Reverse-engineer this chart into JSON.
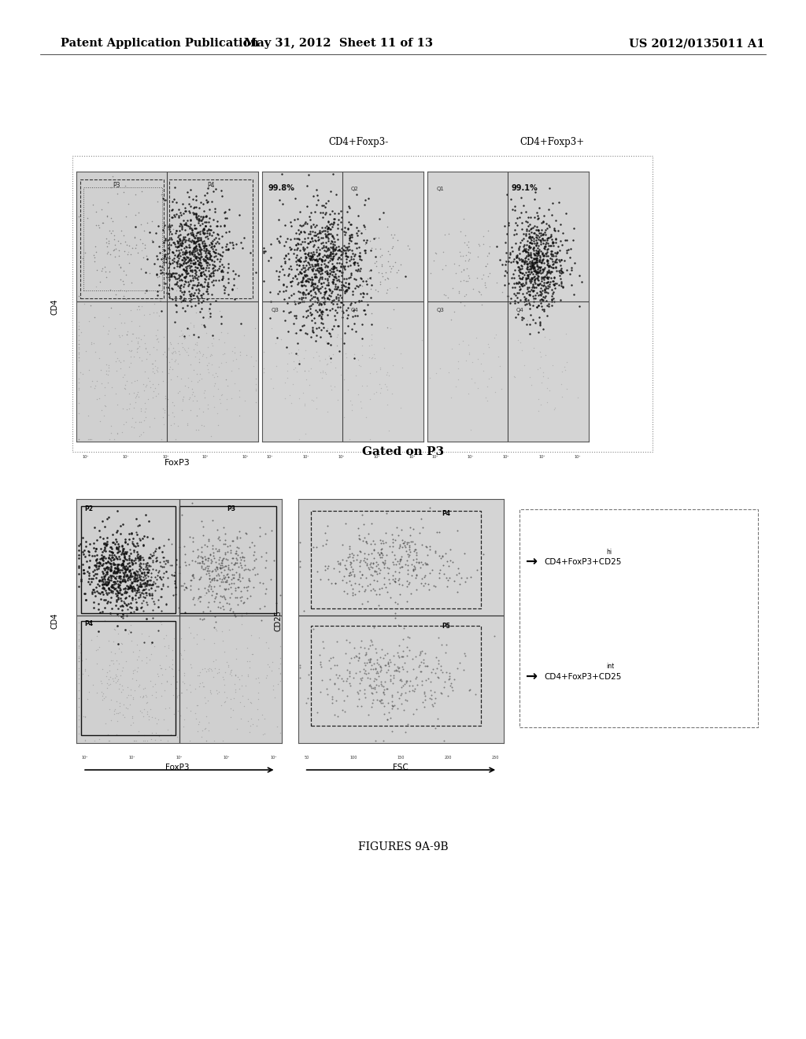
{
  "background_color": "#ffffff",
  "header_left": "Patent Application Publication",
  "header_center": "May 31, 2012  Sheet 11 of 13",
  "header_right": "US 2012/0135011 A1",
  "header_fontsize": 10.5,
  "top_label_cd4foxp3neg": "CD4+Foxp3-",
  "top_label_cd4foxp3pos": "CD4+Foxp3+",
  "fig9a_pct1": "99.8%",
  "fig9a_pct2": "99.1%",
  "gated_title": "Gated on P3",
  "label_foxp3": "FoxP3",
  "label_fsc": "FSC",
  "label_cd4": "CD4",
  "label_cd25": "CD25",
  "annotation_p4": "CD4+FoxP3+CD25",
  "annotation_p4_sup": "hi",
  "annotation_p5": "CD4+FoxP3+CD25",
  "annotation_p5_sup": "int",
  "fig_caption": "FIGURES 9A-9B",
  "plot_facecolor": "#d8d8d8",
  "dot_dark": "#111111",
  "dot_medium": "#444444",
  "dot_light": "#888888"
}
